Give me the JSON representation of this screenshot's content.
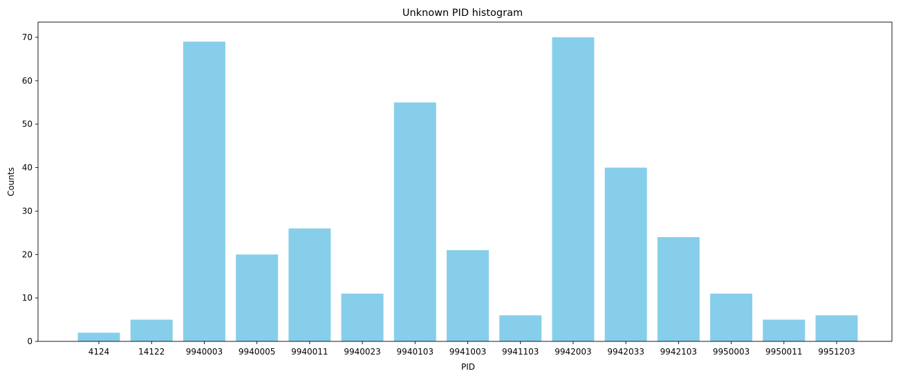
{
  "chart_data": {
    "type": "bar",
    "title": "Unknown PID histogram",
    "xlabel": "PID",
    "ylabel": "Counts",
    "categories": [
      "4124",
      "14122",
      "9940003",
      "9940005",
      "9940011",
      "9940023",
      "9940103",
      "9941003",
      "9941103",
      "9942003",
      "9942033",
      "9942103",
      "9950003",
      "9950011",
      "9951203"
    ],
    "values": [
      2,
      5,
      69,
      20,
      26,
      11,
      55,
      21,
      6,
      70,
      40,
      24,
      11,
      5,
      6
    ],
    "ylim": [
      0,
      73.5
    ],
    "yticks": [
      0,
      10,
      20,
      30,
      40,
      50,
      60,
      70
    ],
    "grid": false,
    "bar_color": "#87CEEB"
  }
}
